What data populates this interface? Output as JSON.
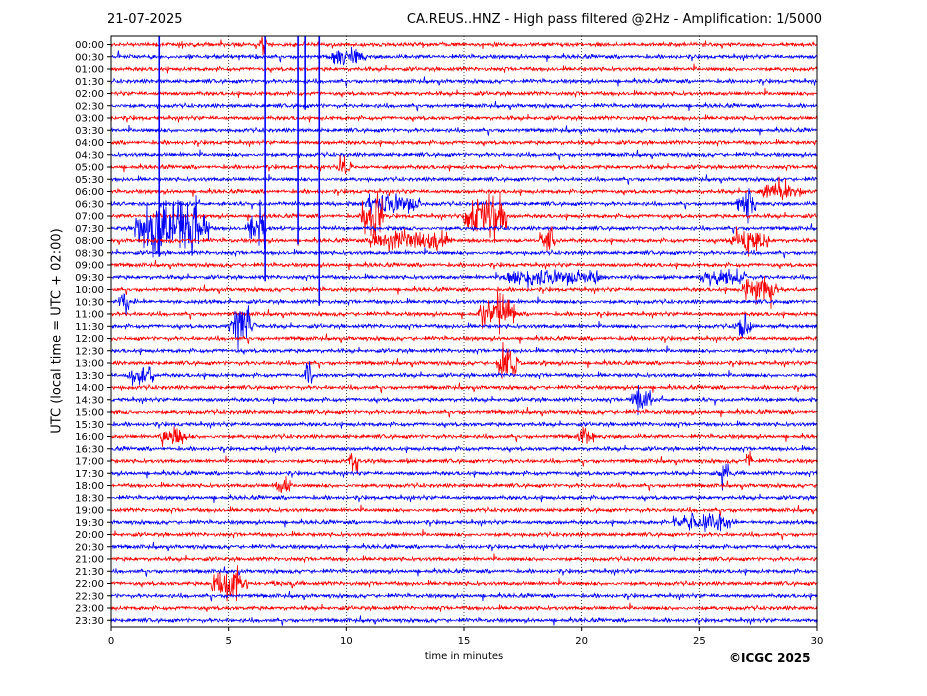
{
  "header": {
    "date": "21-07-2025",
    "title": "CA.REUS..HNZ - High pass filtered @2Hz - Amplification: 1/5000"
  },
  "credit": "©ICGC 2025",
  "colors": {
    "even_rows": "#ff0000",
    "odd_rows": "#0000ff",
    "grid": "#000000"
  },
  "chart_data": {
    "type": "line",
    "title": "CA.REUS..HNZ - High pass filtered @2Hz - Amplification: 1/5000",
    "xlabel": "time in minutes",
    "ylabel": "UTC (local time = UTC + 02:00)",
    "xlim": [
      0,
      30
    ],
    "xticks": [
      0,
      5,
      10,
      15,
      20,
      25,
      30
    ],
    "grid": "x-dotted",
    "rows": [
      "00:00",
      "00:30",
      "01:00",
      "01:30",
      "02:00",
      "02:30",
      "03:00",
      "03:30",
      "04:00",
      "04:30",
      "05:00",
      "05:30",
      "06:00",
      "06:30",
      "07:00",
      "07:30",
      "08:00",
      "08:30",
      "09:00",
      "09:30",
      "10:00",
      "10:30",
      "11:00",
      "11:30",
      "12:00",
      "12:30",
      "13:00",
      "13:30",
      "14:00",
      "14:30",
      "15:00",
      "15:30",
      "16:00",
      "16:30",
      "17:00",
      "17:30",
      "18:00",
      "18:30",
      "19:00",
      "19:30",
      "20:00",
      "20:30",
      "21:00",
      "21:30",
      "22:00",
      "22:30",
      "23:00",
      "23:30"
    ],
    "events": [
      {
        "row": "00:00",
        "start": 6.3,
        "end": 6.6,
        "amp": 6
      },
      {
        "row": "00:30",
        "start": 9.2,
        "end": 10.8,
        "amp": 5
      },
      {
        "row": "05:00",
        "start": 9.6,
        "end": 10.2,
        "amp": 7
      },
      {
        "row": "06:00",
        "start": 27.5,
        "end": 29.5,
        "amp": 5
      },
      {
        "row": "06:30",
        "start": 10.8,
        "end": 13.2,
        "amp": 8
      },
      {
        "row": "06:30",
        "start": 26.6,
        "end": 27.4,
        "amp": 11
      },
      {
        "row": "07:00",
        "start": 10.6,
        "end": 11.6,
        "amp": 14
      },
      {
        "row": "07:00",
        "start": 15.0,
        "end": 16.8,
        "amp": 15
      },
      {
        "row": "07:30",
        "start": 1.0,
        "end": 4.2,
        "amp": 18
      },
      {
        "row": "07:30",
        "start": 5.8,
        "end": 6.6,
        "amp": 14
      },
      {
        "row": "08:00",
        "start": 11.0,
        "end": 14.5,
        "amp": 7
      },
      {
        "row": "08:00",
        "start": 18.2,
        "end": 18.9,
        "amp": 8
      },
      {
        "row": "08:00",
        "start": 26.2,
        "end": 28.0,
        "amp": 7
      },
      {
        "row": "09:30",
        "start": 16.5,
        "end": 21.0,
        "amp": 6
      },
      {
        "row": "09:30",
        "start": 25.0,
        "end": 27.0,
        "amp": 6
      },
      {
        "row": "10:00",
        "start": 26.8,
        "end": 28.4,
        "amp": 9
      },
      {
        "row": "10:30",
        "start": 0.3,
        "end": 0.8,
        "amp": 7
      },
      {
        "row": "11:00",
        "start": 15.6,
        "end": 17.2,
        "amp": 10
      },
      {
        "row": "11:30",
        "start": 5.0,
        "end": 6.2,
        "amp": 12
      },
      {
        "row": "11:30",
        "start": 26.5,
        "end": 27.2,
        "amp": 8
      },
      {
        "row": "13:00",
        "start": 16.4,
        "end": 17.3,
        "amp": 11
      },
      {
        "row": "13:30",
        "start": 0.7,
        "end": 1.8,
        "amp": 8
      },
      {
        "row": "13:30",
        "start": 8.2,
        "end": 8.6,
        "amp": 10
      },
      {
        "row": "14:30",
        "start": 22.0,
        "end": 23.0,
        "amp": 6
      },
      {
        "row": "16:00",
        "start": 2.0,
        "end": 3.2,
        "amp": 6
      },
      {
        "row": "16:00",
        "start": 19.8,
        "end": 20.6,
        "amp": 5
      },
      {
        "row": "17:00",
        "start": 10.1,
        "end": 10.6,
        "amp": 7
      },
      {
        "row": "17:00",
        "start": 26.9,
        "end": 27.3,
        "amp": 7
      },
      {
        "row": "17:30",
        "start": 25.8,
        "end": 26.3,
        "amp": 6
      },
      {
        "row": "18:00",
        "start": 7.0,
        "end": 7.6,
        "amp": 7
      },
      {
        "row": "19:30",
        "start": 23.8,
        "end": 26.5,
        "amp": 6
      },
      {
        "row": "22:00",
        "start": 4.2,
        "end": 5.8,
        "amp": 9
      }
    ],
    "spikes": [
      {
        "x": 2.05,
        "row_start": "00:00",
        "row_end": "08:30"
      },
      {
        "x": 6.55,
        "row_start": "00:00",
        "row_end": "09:30"
      },
      {
        "x": 7.95,
        "row_start": "00:00",
        "row_end": "08:00"
      },
      {
        "x": 8.25,
        "row_start": "00:00",
        "row_end": "02:30"
      },
      {
        "x": 8.85,
        "row_start": "00:00",
        "row_end": "10:30"
      }
    ]
  }
}
